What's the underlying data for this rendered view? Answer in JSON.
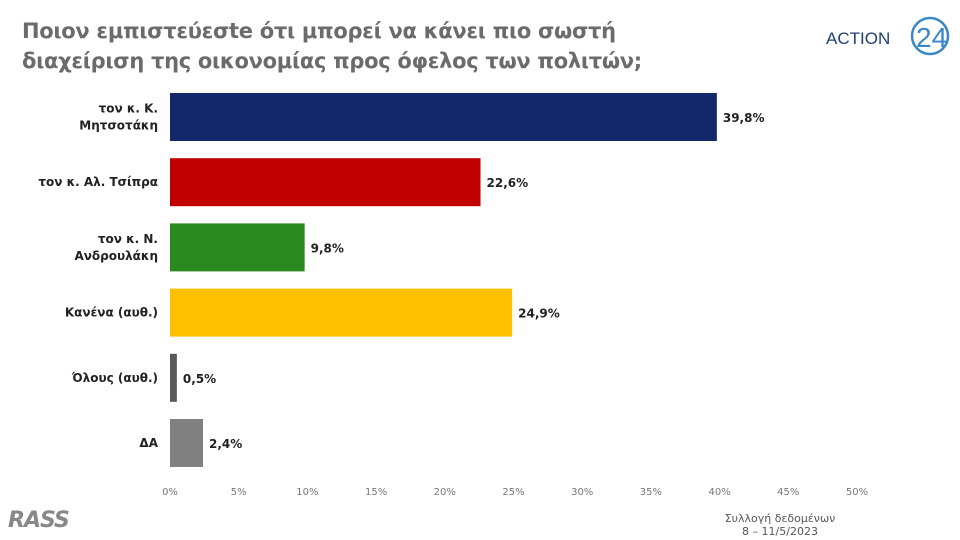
{
  "header": {
    "title": "Ποιον εμπιστεύεσte ότι μπορεί να κάνει πιο σωστή διαχείριση της οικονομίας προς όφελος των πολιτών;",
    "logo": "ACTION 24"
  },
  "footer": {
    "logo": "RASS",
    "note_line1": "Συλλογή δεδομένων",
    "note_line2": "8 – 11/5/2023"
  },
  "chart_data": {
    "type": "bar",
    "orientation": "horizontal",
    "title": "Ποιον εμπιστεύεσte ότι μπορεί να κάνει πιο σωστή διαχείριση της οικονομίας προς όφελος των πολιτών;",
    "categories": [
      [
        "τον κ. Κ.",
        "Μητσοτάκη"
      ],
      [
        "τον κ. Αλ. Τσίπρα"
      ],
      [
        "τον κ. Ν.",
        "Ανδρουλάκη"
      ],
      [
        "Κανένα (αυθ.)"
      ],
      [
        "Όλους (αυθ.)"
      ],
      [
        "ΔΑ"
      ]
    ],
    "values": [
      39.8,
      22.6,
      9.8,
      24.9,
      0.5,
      2.4
    ],
    "labels": [
      "39,8%",
      "22,6%",
      "9,8%",
      "24,9%",
      "0,5%",
      "2,4%"
    ],
    "colors": [
      "#13286a",
      "#c00000",
      "#2b8a1f",
      "#ffc000",
      "#595959",
      "#808080"
    ],
    "xlim": [
      0,
      50
    ],
    "ticks": [
      "0%",
      "5%",
      "10%",
      "15%",
      "20%",
      "25%",
      "30%",
      "35%",
      "40%",
      "45%",
      "50%"
    ],
    "grid": false
  }
}
